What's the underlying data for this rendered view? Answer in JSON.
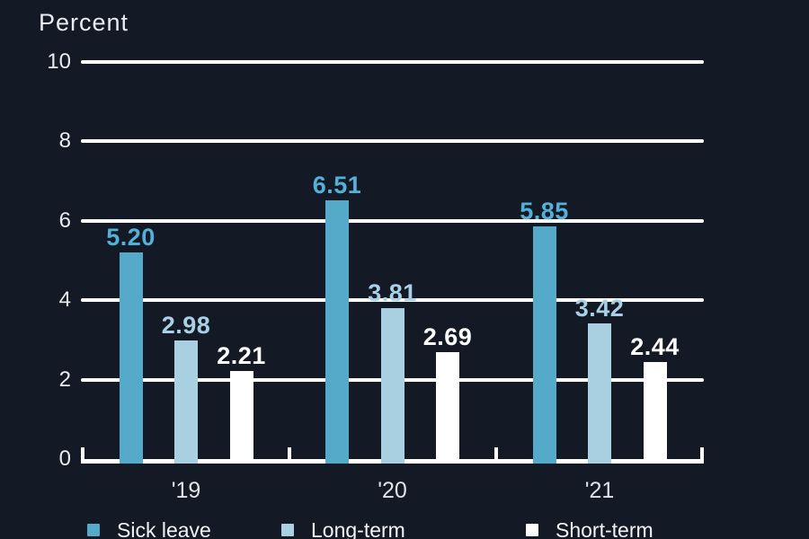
{
  "chart_data": {
    "type": "bar",
    "title": "Percent",
    "ylabel": "Percent",
    "xlabel": "",
    "categories": [
      "'19",
      "'20",
      "'21"
    ],
    "series": [
      {
        "name": "Sick leave",
        "values": [
          5.2,
          6.51,
          5.85
        ],
        "value_labels": [
          "5.20",
          "6.51",
          "5.85"
        ],
        "bar_color": "#55aac9",
        "value_label_color": "#53b0d8"
      },
      {
        "name": "Long-term",
        "values": [
          2.98,
          3.81,
          3.42
        ],
        "value_labels": [
          "2.98",
          "3.81",
          "3.42"
        ],
        "bar_color": "#a9d0e1",
        "value_label_color": "#a9d0e4"
      },
      {
        "name": "Short-term",
        "values": [
          2.21,
          2.69,
          2.44
        ],
        "value_labels": [
          "2.21",
          "2.69",
          "2.44"
        ],
        "bar_color": "#ffffff",
        "value_label_color": "#ffffff"
      }
    ],
    "ylim": [
      0,
      10
    ],
    "yticks": [
      0,
      2,
      4,
      6,
      8,
      10
    ],
    "grid": "horizontal",
    "legend_position": "bottom",
    "colors": {
      "background": "#131a25",
      "gridline": "#ffffff",
      "axis": "#ffffff",
      "tick_text": "#e8ebef",
      "xtick_text": "#dfe3e9",
      "legend_text": "#f2f4f6"
    }
  }
}
